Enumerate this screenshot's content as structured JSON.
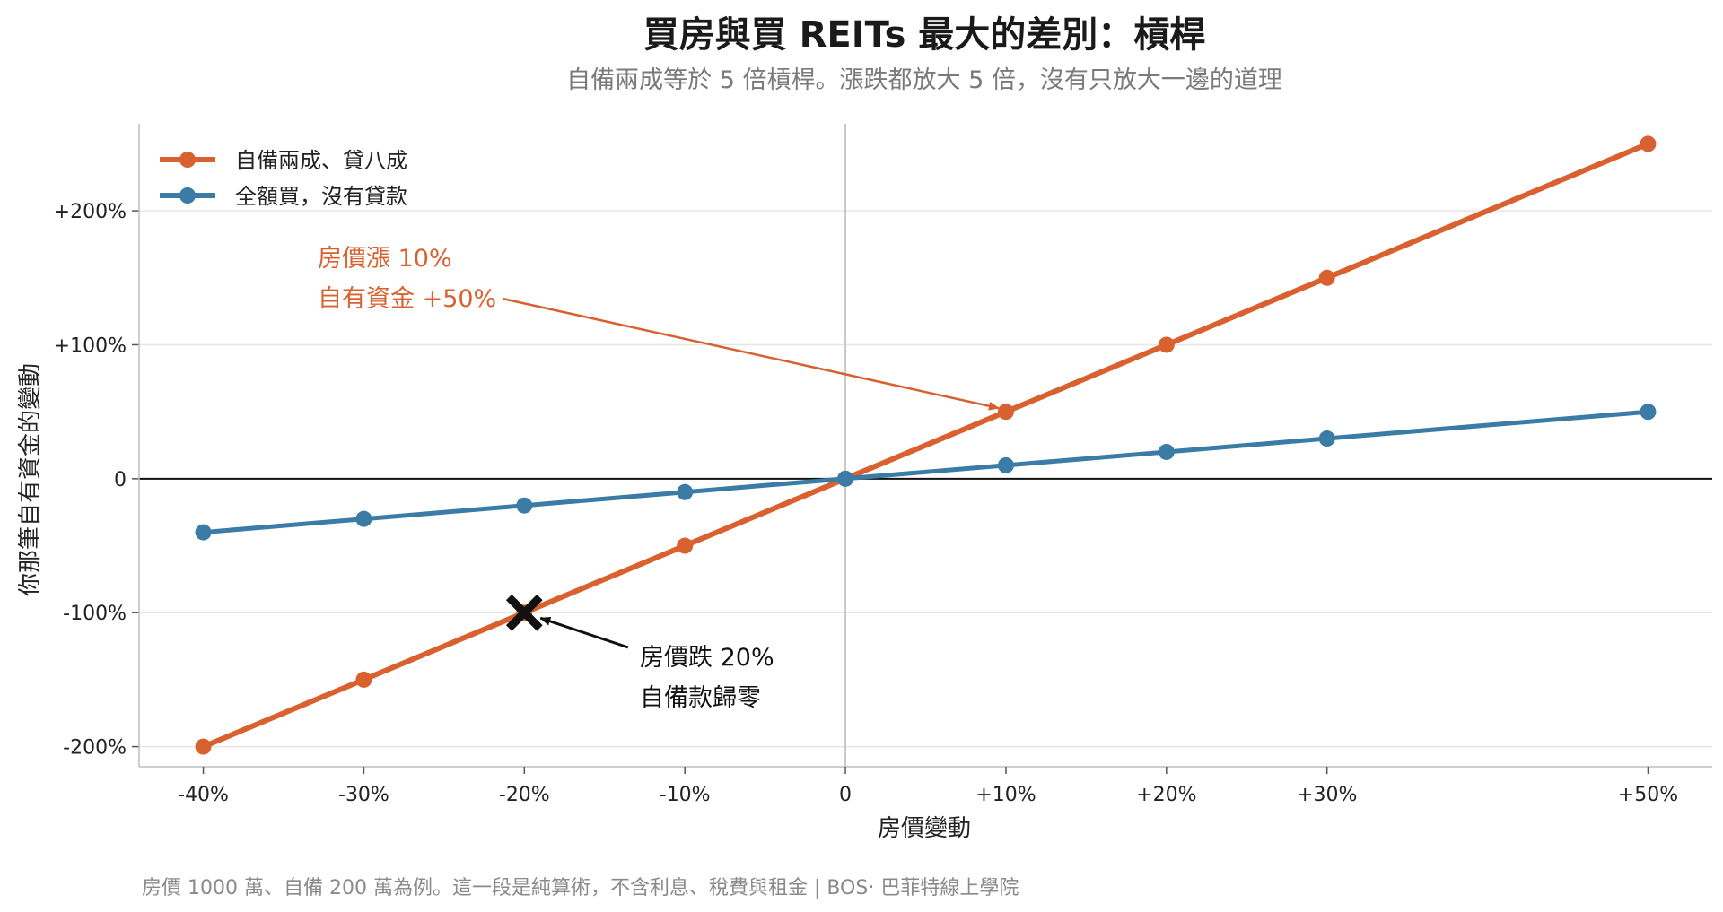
{
  "chart_data": {
    "type": "line",
    "title": "買房與買 REITs 最大的差別：槓桿",
    "subtitle": "自備兩成等於 5 倍槓桿。漲跌都放大 5 倍，沒有只放大一邊的道理",
    "xlabel": "房價變動",
    "ylabel": "你那筆自有資金的變動",
    "x": [
      -40,
      -30,
      -20,
      -10,
      0,
      10,
      20,
      30,
      50
    ],
    "x_tick_labels": [
      "-40%",
      "-30%",
      "-20%",
      "-10%",
      "0",
      "+10%",
      "+20%",
      "+30%",
      "+50%"
    ],
    "y_ticks": [
      -200,
      -100,
      0,
      100,
      200
    ],
    "y_tick_labels": [
      "-200%",
      "-100%",
      "0",
      "+100%",
      "+200%"
    ],
    "xlim": [
      -44,
      54
    ],
    "ylim": [
      -215,
      265
    ],
    "grid": "horizontal",
    "legend_position": "top-left",
    "series": [
      {
        "name": "自備兩成、貸八成",
        "color": "#d9612f",
        "values": [
          -200,
          -150,
          -100,
          -50,
          0,
          50,
          100,
          150,
          250
        ]
      },
      {
        "name": "全額買，沒有貸款",
        "color": "#3a7ca5",
        "values": [
          -40,
          -30,
          -20,
          -10,
          0,
          10,
          20,
          30,
          50
        ]
      }
    ],
    "annotations": [
      {
        "lines": [
          "房價漲 10%",
          "自有資金 +50%"
        ],
        "x": 10,
        "y": 50,
        "color": "#d9612f"
      },
      {
        "lines": [
          "房價跌 20%",
          "自備款歸零"
        ],
        "x": -20,
        "y": -100,
        "color": "#111111",
        "marker": "x"
      }
    ]
  },
  "footer": "房價 1000 萬、自備 200 萬為例。這一段是純算術，不含利息、稅費與租金 | BOS‧ 巴菲特線上學院"
}
